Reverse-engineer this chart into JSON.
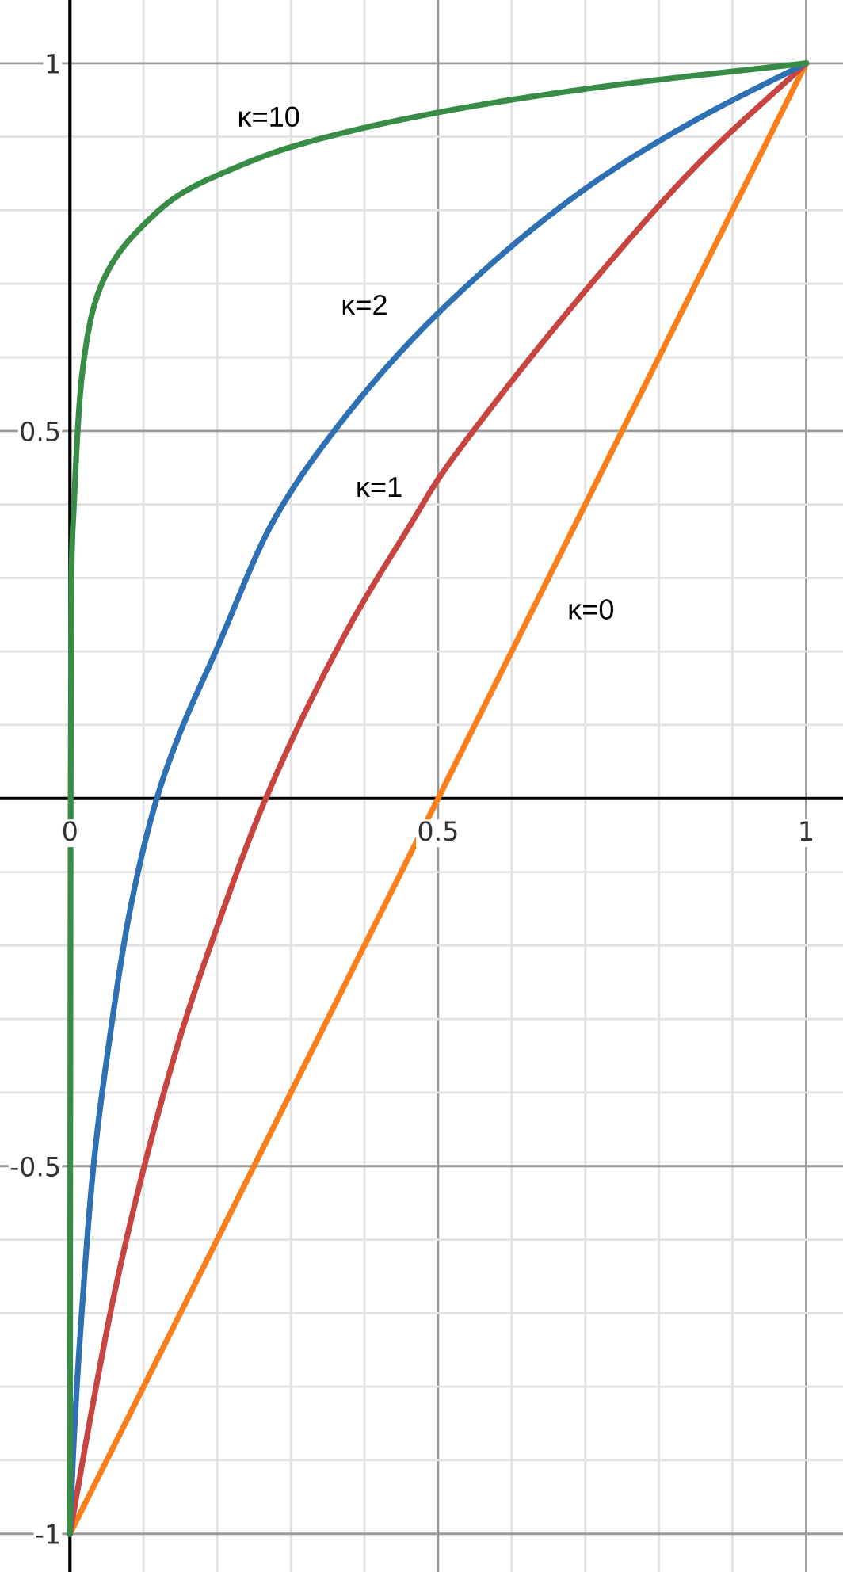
{
  "chart_data": {
    "type": "line",
    "series": [
      {
        "name": "κ=0",
        "color": "#fa7e19",
        "x": [
          0,
          1
        ],
        "values": [
          -1,
          1
        ]
      },
      {
        "name": "κ=1",
        "color": "#c74440",
        "x": [
          0,
          0.03,
          0.06,
          0.101,
          0.151,
          0.198,
          0.266,
          0.38,
          0.464,
          0.5,
          0.548,
          0.708,
          0.854,
          1
        ],
        "values": [
          -1,
          -0.83,
          -0.675,
          -0.5,
          -0.32,
          -0.18,
          0,
          0.235,
          0.375,
          0.434,
          0.5,
          0.7,
          0.864,
          1
        ]
      },
      {
        "name": "κ=2",
        "color": "#2d70b3",
        "x": [
          0,
          0.005,
          0.016,
          0.032,
          0.052,
          0.082,
          0.118,
          0.147,
          0.198,
          0.275,
          0.359,
          0.5,
          0.708,
          0.854,
          1
        ],
        "values": [
          -1,
          -0.88,
          -0.7,
          -0.5,
          -0.34,
          -0.15,
          0,
          0.083,
          0.2,
          0.375,
          0.5,
          0.66,
          0.835,
          0.925,
          1
        ]
      },
      {
        "name": "κ=10",
        "color": "#388c46",
        "x": [
          0,
          0.001,
          0.002,
          0.005,
          0.016,
          0.034,
          0.06,
          0.096,
          0.147,
          0.22,
          0.3,
          0.5,
          0.708,
          1
        ],
        "values": [
          -1,
          0,
          0.3,
          0.39,
          0.572,
          0.674,
          0.732,
          0.776,
          0.82,
          0.856,
          0.886,
          0.933,
          0.966,
          1
        ]
      }
    ],
    "xlim": [
      -0.095,
      1.05
    ],
    "ylim": [
      -1.052,
      1.086
    ],
    "xticks": [
      0,
      {
        "value": 0.1,
        "label": null
      },
      {
        "value": 0.2,
        "label": null
      },
      {
        "value": 0.3,
        "label": null
      },
      {
        "value": 0.4,
        "label": null
      },
      0.5,
      {
        "value": 0.6,
        "label": null
      },
      {
        "value": 0.7,
        "label": null
      },
      {
        "value": 0.8,
        "label": null
      },
      {
        "value": 0.9,
        "label": null
      },
      1
    ],
    "yticks": [
      -1,
      {
        "value": -0.9,
        "label": null
      },
      {
        "value": -0.8,
        "label": null
      },
      {
        "value": -0.7,
        "label": null
      },
      {
        "value": -0.6,
        "label": null
      },
      -0.5,
      {
        "value": -0.4,
        "label": null
      },
      {
        "value": -0.3,
        "label": null
      },
      {
        "value": -0.2,
        "label": null
      },
      {
        "value": -0.1,
        "label": null
      },
      {
        "value": 0,
        "label": null
      },
      {
        "value": 0.1,
        "label": null
      },
      {
        "value": 0.2,
        "label": null
      },
      {
        "value": 0.3,
        "label": null
      },
      {
        "value": 0.4,
        "label": null
      },
      0.5,
      {
        "value": 0.6,
        "label": null
      },
      {
        "value": 0.7,
        "label": null
      },
      {
        "value": 0.8,
        "label": null
      },
      {
        "value": 0.9,
        "label": null
      },
      1
    ],
    "grid": true,
    "line_style": "solid"
  }
}
